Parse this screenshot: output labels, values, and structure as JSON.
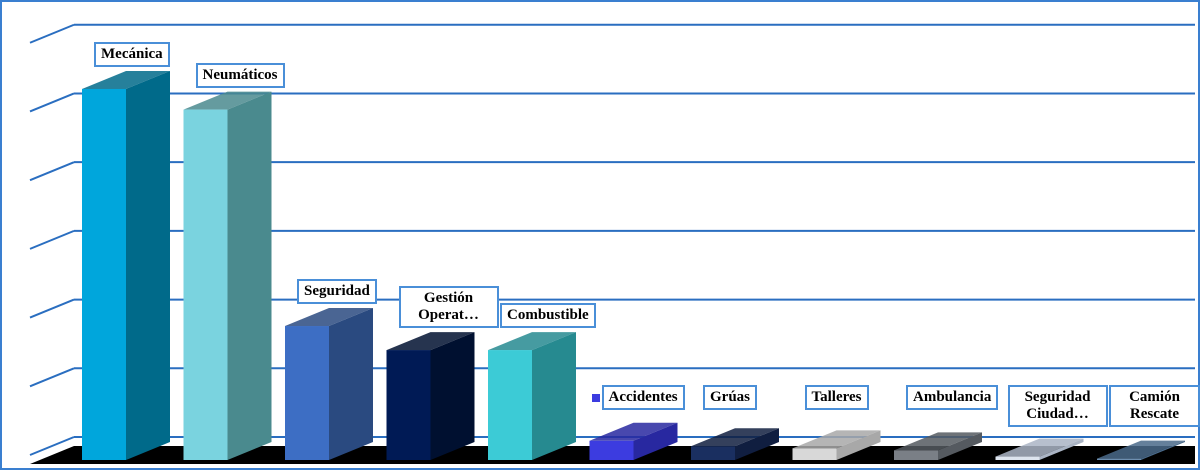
{
  "chart_data": {
    "type": "bar3d",
    "categories": [
      "Mecánica",
      "Neumáticos",
      "Seguridad",
      "Gestión Operat…",
      "Combustible",
      "Accidentes",
      "Grúas",
      "Talleres",
      "Ambulancia",
      "Seguridad Ciudad…",
      "Camión Rescate"
    ],
    "values": [
      5.4,
      5.1,
      1.95,
      1.6,
      1.6,
      0.28,
      0.2,
      0.17,
      0.14,
      0.05,
      0.02
    ],
    "colors": [
      "#00a6dc",
      "#7ad3df",
      "#3d6ec4",
      "#001a55",
      "#3ccbd6",
      "#3c3ce0",
      "#1a2f60",
      "#d8d8d8",
      "#7a7f86",
      "#dde4ee",
      "#6e8fb0"
    ],
    "side_colors": [
      "#006a8a",
      "#4a8a8e",
      "#2a4a80",
      "#001030",
      "#268a90",
      "#2828a0",
      "#101e40",
      "#a8a8a8",
      "#555a60",
      "#aab4c4",
      "#4a6a8a"
    ],
    "ylim": [
      0,
      6.2
    ],
    "yticks": [
      0,
      1,
      2,
      3,
      4,
      5,
      6
    ],
    "grid": true
  }
}
